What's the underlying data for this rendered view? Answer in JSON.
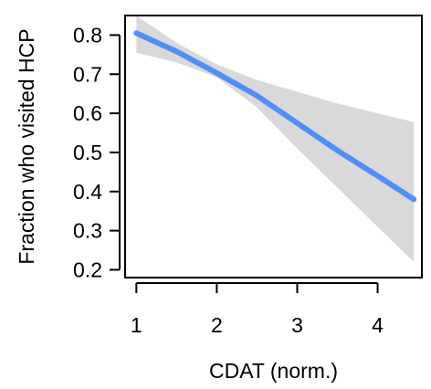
{
  "chart_data": {
    "type": "line",
    "xlabel": "CDAT (norm.)",
    "ylabel": "Fraction who visited HCP",
    "xlim": [
      0.86,
      4.55
    ],
    "ylim": [
      0.18,
      0.85
    ],
    "x_ticks": [
      1,
      2,
      3,
      4
    ],
    "y_ticks": [
      0.2,
      0.3,
      0.4,
      0.5,
      0.6,
      0.7,
      0.8
    ],
    "grid": false,
    "series": [
      {
        "x": [
          1.0,
          1.5,
          2.0,
          2.5,
          3.0,
          3.5,
          4.0,
          4.45
        ],
        "y": [
          0.805,
          0.758,
          0.703,
          0.645,
          0.575,
          0.505,
          0.44,
          0.38
        ]
      }
    ],
    "confidence_band": {
      "x": [
        1.0,
        1.5,
        2.0,
        2.5,
        3.0,
        3.5,
        4.0,
        4.45
      ],
      "lower": [
        0.755,
        0.73,
        0.692,
        0.615,
        0.51,
        0.41,
        0.31,
        0.22
      ],
      "upper": [
        0.85,
        0.78,
        0.725,
        0.685,
        0.655,
        0.625,
        0.6,
        0.578
      ]
    },
    "colors": {
      "line": "#4f8ff7",
      "band": "#d9d9d9",
      "axis": "#000000"
    }
  }
}
